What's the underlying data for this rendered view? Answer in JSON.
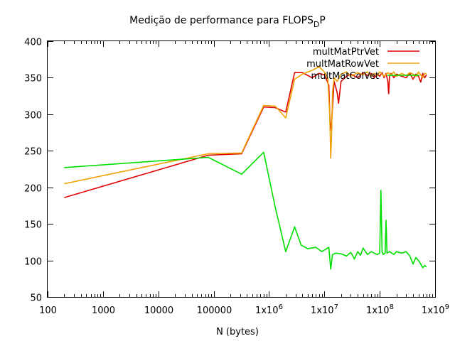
{
  "chart_data": {
    "type": "line",
    "title": "Medição de performance para FLOPS",
    "title_subscript": "D",
    "title_suffix": "P",
    "xlabel": "N (bytes)",
    "ylabel": "",
    "x_scale": "log",
    "xlim": [
      100,
      1000000000
    ],
    "ylim": [
      50,
      400
    ],
    "x_ticks": [
      {
        "value": 100,
        "label": "100"
      },
      {
        "value": 1000,
        "label": "1000"
      },
      {
        "value": 10000,
        "label": "10000"
      },
      {
        "value": 100000,
        "label": "100000"
      },
      {
        "value": 1000000,
        "label": "1x10",
        "exp": "6"
      },
      {
        "value": 10000000,
        "label": "1x10",
        "exp": "7"
      },
      {
        "value": 100000000,
        "label": "1x10",
        "exp": "8"
      },
      {
        "value": 1000000000,
        "label": "1x10",
        "exp": "9"
      }
    ],
    "y_ticks": [
      50,
      100,
      150,
      200,
      250,
      300,
      350,
      400
    ],
    "grid": false,
    "legend_position": "top-right",
    "series": [
      {
        "name": "multMatPtrVet",
        "color": "#e00000",
        "x": [
          200,
          80000,
          320000,
          800000,
          1300000,
          2000000,
          2900000,
          4000000,
          6000000,
          8000000,
          10000000,
          12000000,
          12800000,
          13500000,
          15000000,
          17000000,
          18000000,
          20000000,
          25000000,
          30000000,
          40000000,
          50000000,
          60000000,
          70000000,
          80000000,
          90000000,
          100000000,
          110000000,
          120000000,
          130000000,
          140000000,
          145000000,
          150000000,
          160000000,
          180000000,
          200000000,
          250000000,
          300000000,
          350000000,
          400000000,
          450000000,
          500000000,
          550000000,
          600000000,
          650000000,
          700000000
        ],
        "y": [
          186,
          244,
          246,
          310,
          309,
          303,
          357,
          357,
          350,
          356,
          354,
          340,
          278,
          290,
          345,
          330,
          315,
          345,
          352,
          355,
          350,
          357,
          353,
          356,
          350,
          355,
          352,
          357,
          350,
          356,
          345,
          328,
          352,
          356,
          350,
          355,
          352,
          350,
          356,
          348,
          355,
          352,
          344,
          356,
          350,
          354
        ]
      },
      {
        "name": "multMatRowVet",
        "color": "#f0a000",
        "x": [
          200,
          80000,
          320000,
          800000,
          1300000,
          2000000,
          2900000,
          4000000,
          6000000,
          8000000,
          10000000,
          11500000,
          12500000,
          13000000,
          13500000,
          14000000,
          15000000,
          17000000,
          20000000,
          25000000,
          30000000,
          40000000,
          50000000,
          60000000,
          70000000,
          80000000,
          90000000,
          100000000,
          120000000,
          140000000,
          160000000,
          180000000,
          200000000,
          250000000,
          300000000,
          350000000,
          400000000,
          450000000,
          500000000,
          550000000,
          600000000,
          650000000,
          700000000
        ],
        "y": [
          205,
          246,
          247,
          312,
          311,
          295,
          348,
          355,
          360,
          365,
          358,
          350,
          300,
          240,
          270,
          330,
          350,
          345,
          355,
          358,
          352,
          357,
          354,
          358,
          352,
          356,
          353,
          358,
          352,
          357,
          354,
          358,
          352,
          356,
          353,
          357,
          355,
          352,
          358,
          354,
          350,
          356,
          355
        ]
      },
      {
        "name": "multMatColVet",
        "color": "#00e000",
        "x": [
          200,
          80000,
          320000,
          800000,
          1300000,
          2000000,
          2900000,
          3800000,
          5000000,
          7000000,
          9000000,
          11000000,
          12000000,
          13000000,
          14000000,
          16000000,
          20000000,
          25000000,
          30000000,
          35000000,
          40000000,
          45000000,
          50000000,
          60000000,
          70000000,
          80000000,
          90000000,
          100000000,
          105000000,
          110000000,
          115000000,
          125000000,
          130000000,
          135000000,
          150000000,
          180000000,
          200000000,
          250000000,
          300000000,
          350000000,
          400000000,
          450000000,
          500000000,
          550000000,
          600000000,
          650000000,
          700000000
        ],
        "y": [
          227,
          241,
          218,
          248,
          172,
          112,
          146,
          121,
          116,
          118,
          112,
          116,
          118,
          88,
          108,
          110,
          109,
          106,
          111,
          102,
          112,
          107,
          117,
          108,
          112,
          110,
          108,
          110,
          196,
          112,
          108,
          110,
          155,
          110,
          112,
          108,
          112,
          110,
          112,
          106,
          95,
          104,
          100,
          95,
          90,
          93,
          91
        ]
      }
    ]
  }
}
